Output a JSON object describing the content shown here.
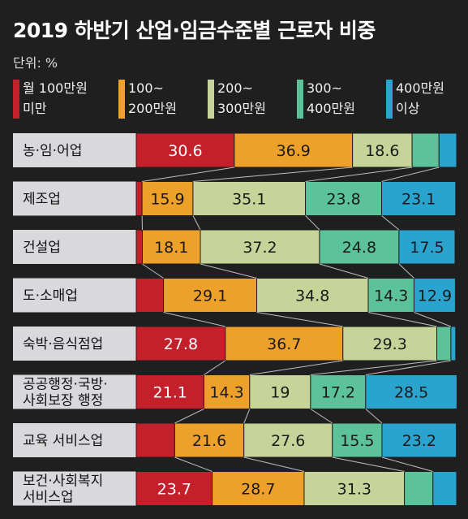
{
  "title": "2019 하반기 산업·임금수준별 근로자 비중",
  "unit_label": "단위: %",
  "colors": {
    "band_lt100": "#c4202b",
    "band_100_200": "#eea12a",
    "band_200_300": "#c6d49a",
    "band_300_400": "#5cc29a",
    "band_gte400": "#2aa3cf",
    "background": "#1f1f1f",
    "label_box": "#d9d9dc"
  },
  "legend": [
    {
      "label": "월 100만원\n미만",
      "color": "#c4202b"
    },
    {
      "label": "100~\n200만원",
      "color": "#eea12a"
    },
    {
      "label": "200~\n300만원",
      "color": "#c6d49a"
    },
    {
      "label": "300~\n400만원",
      "color": "#5cc29a"
    },
    {
      "label": "400만원\n이상",
      "color": "#2aa3cf"
    }
  ],
  "chart_data": {
    "type": "bar",
    "orientation": "horizontal",
    "stacked": true,
    "normalized_percent": true,
    "title": "2019 하반기 산업·임금수준별 근로자 비중",
    "unit": "%",
    "xlim": [
      0,
      100
    ],
    "categories": [
      "농·임·어업",
      "제조업",
      "건설업",
      "도·소매업",
      "숙박·음식점업",
      "공공행정·국방·\n사회보장 행정",
      "교육 서비스업",
      "보건·사회복지\n서비스업"
    ],
    "series": [
      {
        "name": "월 100만원 미만",
        "color": "#c4202b",
        "values": [
          30.6,
          1.8,
          1.9,
          8.5,
          27.8,
          21.1,
          12.0,
          23.7
        ],
        "labels": [
          "30.6",
          "",
          "",
          "",
          "27.8",
          "21.1",
          "",
          "23.7"
        ]
      },
      {
        "name": "100~200만원",
        "color": "#eea12a",
        "values": [
          36.9,
          15.9,
          18.1,
          29.1,
          36.7,
          14.3,
          21.6,
          28.7
        ],
        "labels": [
          "36.9",
          "15.9",
          "18.1",
          "29.1",
          "36.7",
          "14.3",
          "21.6",
          "28.7"
        ]
      },
      {
        "name": "200~300만원",
        "color": "#c6d49a",
        "values": [
          18.6,
          35.1,
          37.2,
          34.8,
          29.3,
          19.0,
          27.6,
          31.3
        ],
        "labels": [
          "18.6",
          "35.1",
          "37.2",
          "34.8",
          "29.3",
          "19",
          "27.6",
          "31.3"
        ]
      },
      {
        "name": "300~400만원",
        "color": "#5cc29a",
        "values": [
          8.4,
          23.8,
          24.8,
          14.3,
          4.4,
          17.2,
          15.5,
          8.9
        ],
        "labels": [
          "",
          "23.8",
          "24.8",
          "14.3",
          "",
          "17.2",
          "15.5",
          ""
        ]
      },
      {
        "name": "400만원 이상",
        "color": "#2aa3cf",
        "values": [
          5.5,
          23.1,
          17.5,
          12.9,
          1.5,
          28.5,
          23.2,
          7.4
        ],
        "labels": [
          "",
          "23.1",
          "17.5",
          "12.9",
          "",
          "28.5",
          "23.2",
          ""
        ]
      }
    ]
  }
}
